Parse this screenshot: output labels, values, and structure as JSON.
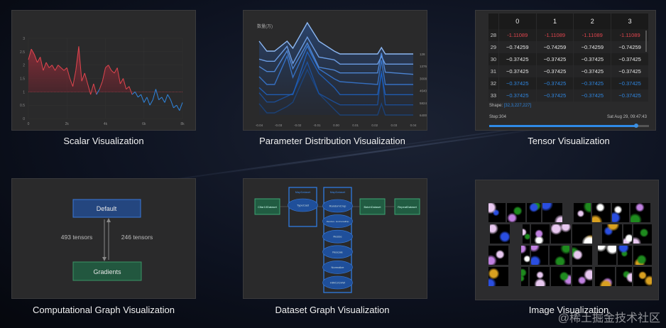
{
  "captions": {
    "scalar": "Scalar Visualization",
    "param": "Parameter Distribution Visualization",
    "tensor": "Tensor Visualization",
    "graph": "Computational Graph Visualization",
    "dataset": "Dataset Graph Visualization",
    "image": "Image Visualization"
  },
  "watermark": "@稀土掘金技术社区",
  "chart_data": [
    {
      "type": "line",
      "name_ref": "scalar",
      "x_range": [
        0,
        8000
      ],
      "xticks": [
        "0",
        "2k",
        "4k",
        "6k",
        "8k"
      ],
      "ylim": [
        0,
        3
      ],
      "yticks": [
        "0",
        "0.5",
        "1",
        "1.5",
        "2",
        "2.5",
        "3"
      ],
      "threshold": 1,
      "colors": {
        "above": "#e0454e",
        "below": "#2f86e0"
      },
      "grid": true,
      "values": [
        2.2,
        2.6,
        2.4,
        2.1,
        2.3,
        1.8,
        2.1,
        1.9,
        2.0,
        1.8,
        2.0,
        1.9,
        1.8,
        1.9,
        1.5,
        1.2,
        1.8,
        2.7,
        1.4,
        1.7,
        1.3,
        0.9,
        1.3,
        0.9,
        1.1,
        1.4,
        1.9,
        2.0,
        1.8,
        1.7,
        1.9,
        1.3,
        1.5,
        1.1,
        1.2,
        0.9,
        1.0,
        0.8,
        0.9,
        0.6,
        0.8,
        0.5,
        0.7,
        1.1,
        0.7,
        0.8,
        0.6,
        0.9,
        0.7,
        0.4,
        0.5,
        0.3,
        0.6
      ]
    },
    {
      "type": "line",
      "name_ref": "param",
      "title": "数量(万)",
      "xlim": [
        -0.04,
        0.04
      ],
      "xticks": [
        "-0.04",
        "-0.03",
        "-0.02",
        "-0.01",
        "0.00",
        "0.01",
        "0.02",
        "0.03",
        "0.04"
      ],
      "step_labels": [
        "128",
        "1376",
        "3008",
        "4640",
        "5824",
        "6400"
      ],
      "x": [
        -0.04,
        -0.036,
        -0.032,
        -0.0255,
        -0.0225,
        -0.015,
        -0.009,
        -0.001,
        0.002,
        0.0215,
        0.0235,
        0.0255,
        0.04
      ],
      "series": [
        {
          "values": [
            18,
            4,
            4,
            18,
            8,
            44,
            18,
            4,
            0,
            0,
            9,
            0,
            0
          ]
        },
        {
          "values": [
            7,
            4,
            4,
            25,
            1,
            38,
            10,
            6,
            0,
            0,
            11,
            0,
            0
          ]
        },
        {
          "values": [
            11,
            4,
            4,
            33,
            8,
            44,
            10,
            6,
            2,
            2,
            30,
            3,
            0
          ]
        },
        {
          "values": [
            11,
            0,
            0,
            40,
            10,
            54,
            22,
            8,
            4,
            0,
            34,
            0,
            0
          ]
        },
        {
          "values": [
            10,
            0,
            0,
            0,
            0,
            60,
            30,
            10,
            0,
            0,
            30,
            0,
            0
          ]
        },
        {
          "values": [
            17,
            4,
            4,
            12,
            16,
            60,
            16,
            4,
            0,
            0,
            48,
            0,
            0
          ]
        },
        {
          "values": [
            16,
            3,
            3,
            12,
            18,
            64,
            30,
            8,
            0,
            0,
            16,
            0,
            0
          ]
        }
      ],
      "color": "#4a8fe8"
    }
  ],
  "tensor": {
    "columns": [
      "",
      "0",
      "1",
      "2",
      "3"
    ],
    "rows": [
      {
        "index": "28",
        "values": [
          "-1.11089",
          "-1.11089",
          "-1.11089",
          "-1.11089"
        ],
        "color": "red"
      },
      {
        "index": "29",
        "values": [
          "−0.74259",
          "−0.74259",
          "−0.74259",
          "−0.74259"
        ],
        "color": "white"
      },
      {
        "index": "30",
        "values": [
          "−0.37425",
          "−0.37425",
          "−0.37425",
          "−0.37425"
        ],
        "color": "white"
      },
      {
        "index": "31",
        "values": [
          "−0.37425",
          "−0.37425",
          "−0.37425",
          "−0.37425"
        ],
        "color": "white"
      },
      {
        "index": "32",
        "values": [
          "−0.37425",
          "−0.37425",
          "−0.37425",
          "−0.37425"
        ],
        "color": "blue"
      },
      {
        "index": "33",
        "values": [
          "−0.37425",
          "−0.37425",
          "−0.37425",
          "−0.37425"
        ],
        "color": "blue"
      }
    ],
    "shape_label": "Shape:",
    "shape_value": "[32,3,227,227]",
    "step": "Step:304",
    "timestamp": "Sat Aug 29, 09:47:43",
    "slider_fraction": 0.92
  },
  "graph": {
    "top_node": "Default",
    "bottom_node": "Gradients",
    "left_edge": "493 tensors",
    "right_edge": "246 tensors"
  },
  "dataset": {
    "source": "Cifar10Dataset",
    "map1": {
      "title": "MapDataset",
      "ops": [
        "TypeCast"
      ]
    },
    "map2": {
      "title": "MapDataset",
      "ops": [
        "RandomCrop",
        "Random-\nHorizontalFlip",
        "Resize",
        "Rescale",
        "Normalize",
        "HWC2CHW"
      ]
    },
    "batch": "BatchDataset",
    "repeat": "RepeatDataset"
  }
}
